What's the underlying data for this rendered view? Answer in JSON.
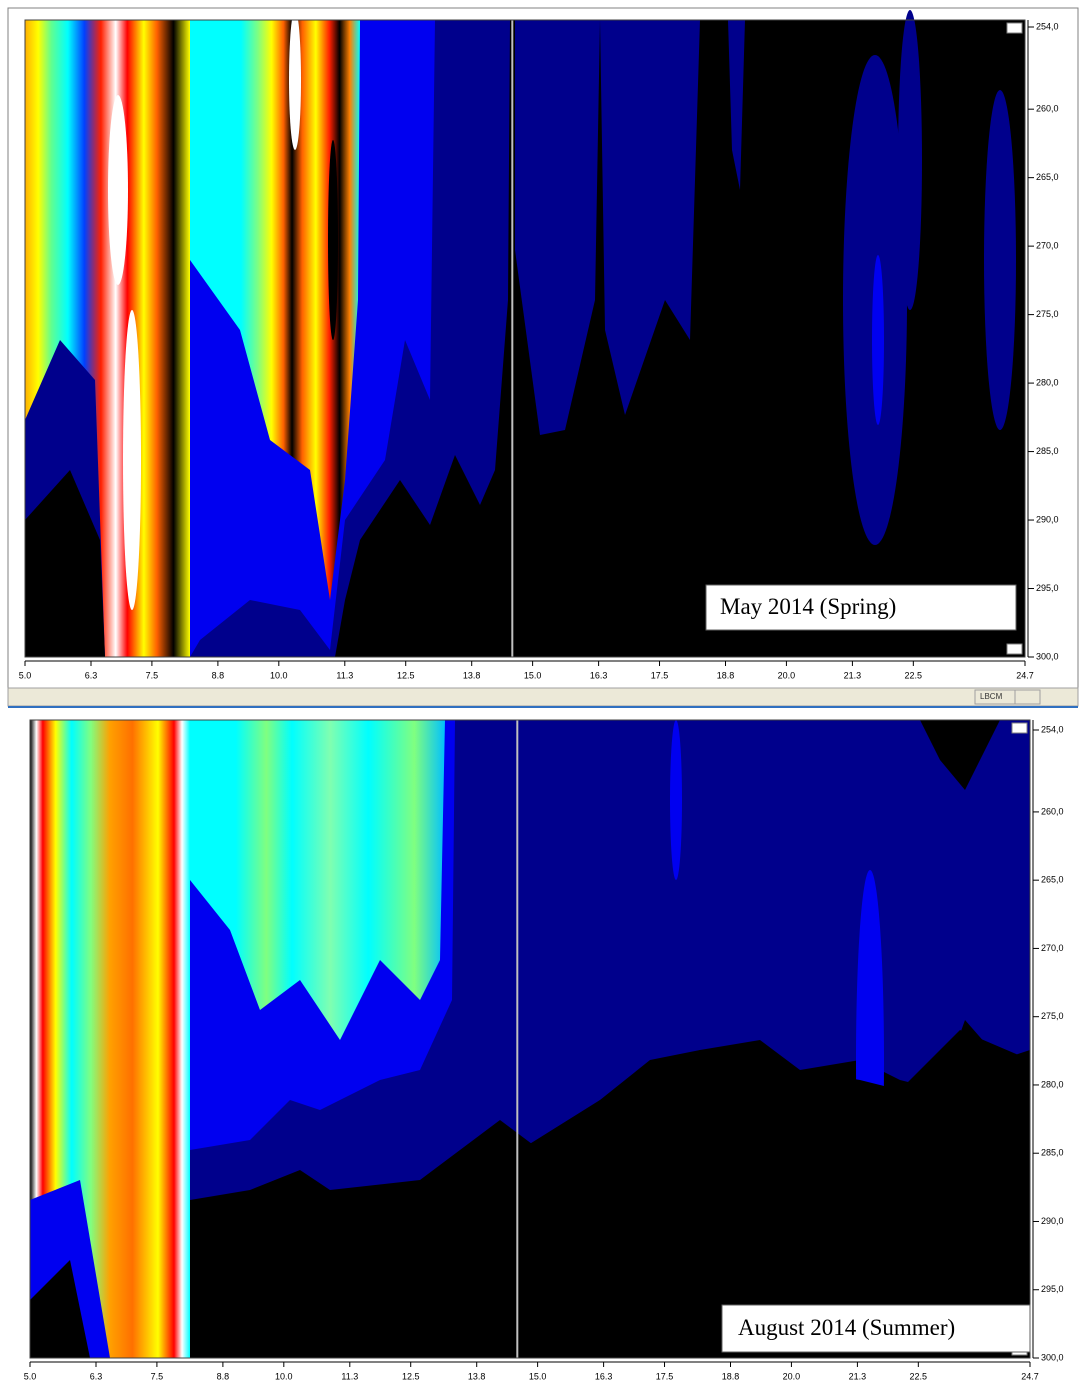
{
  "chart_data": [
    {
      "type": "contour",
      "annotation": "May 2014 (Spring)",
      "xlim": [
        5,
        24.7
      ],
      "xticks": [
        {
          "value": 5,
          "label": "5.0"
        },
        6.3,
        7.5,
        8.8,
        {
          "value": 10,
          "label": "10.0"
        },
        11.3,
        12.5,
        13.8,
        {
          "value": 15,
          "label": "15.0"
        },
        16.3,
        17.5,
        18.8,
        {
          "value": 20,
          "label": "20.0"
        },
        21.3,
        22.5,
        24.7
      ],
      "ylim": [
        254,
        300
      ],
      "yticks": [
        {
          "value": 254,
          "label": "254,0"
        },
        {
          "value": 260,
          "label": "260,0"
        },
        {
          "value": 265,
          "label": "265,0"
        },
        {
          "value": 270,
          "label": "270,0"
        },
        {
          "value": 275,
          "label": "275,0"
        },
        {
          "value": 280,
          "label": "280,0"
        },
        {
          "value": 285,
          "label": "285,0"
        },
        {
          "value": 290,
          "label": "290,0"
        },
        {
          "value": 295,
          "label": "295,0"
        },
        {
          "value": 300,
          "label": "300,0"
        }
      ],
      "cursor_x": 14.6
    },
    {
      "type": "contour",
      "annotation": "August 2014 (Summer)",
      "xlim": [
        5,
        24.7
      ],
      "xticks": [
        {
          "value": 5,
          "label": "5.0"
        },
        6.3,
        7.5,
        8.8,
        {
          "value": 10,
          "label": "10.0"
        },
        11.3,
        12.5,
        13.8,
        {
          "value": 15,
          "label": "15.0"
        },
        16.3,
        17.5,
        18.8,
        {
          "value": 20,
          "label": "20.0"
        },
        21.3,
        22.5,
        24.7
      ],
      "ylim": [
        254,
        300
      ],
      "yticks": [
        {
          "value": 254,
          "label": "254,0"
        },
        {
          "value": 260,
          "label": "260,0"
        },
        {
          "value": 265,
          "label": "265,0"
        },
        {
          "value": 270,
          "label": "270,0"
        },
        {
          "value": 275,
          "label": "275,0"
        },
        {
          "value": 280,
          "label": "280,0"
        },
        {
          "value": 285,
          "label": "285,0"
        },
        {
          "value": 290,
          "label": "290,0"
        },
        {
          "value": 295,
          "label": "295,0"
        },
        {
          "value": 300,
          "label": "300,0"
        }
      ],
      "cursor_x": 14.6
    }
  ],
  "status_bar": "LBCM"
}
